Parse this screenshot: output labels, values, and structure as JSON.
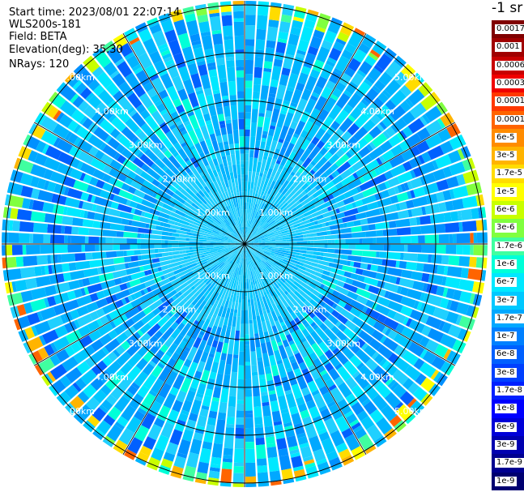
{
  "info": {
    "start_time": "Start time: 2023/08/01 22:07:14",
    "instrument": "WLS200s-181",
    "field": "Field: BETA",
    "elevation": "Elevation(deg): 35.30",
    "nrays": "NRays: 120"
  },
  "colorbar": {
    "title": "-1 sr",
    "labels": [
      "0.0017",
      "0.001",
      "0.0006",
      "0.0003",
      "0.00017",
      "0.0001",
      "6e-5",
      "3e-5",
      "1.7e-5",
      "1e-5",
      "6e-6",
      "3e-6",
      "1.7e-6",
      "1e-6",
      "6e-7",
      "3e-7",
      "1.7e-7",
      "1e-7",
      "6e-8",
      "3e-8",
      "1.7e-8",
      "1e-8",
      "6e-9",
      "3e-9",
      "1.7e-9",
      "1e-9"
    ],
    "colors": [
      "#800000",
      "#a00000",
      "#c80000",
      "#f00000",
      "#ff3800",
      "#ff6400",
      "#ff8c00",
      "#ffb400",
      "#ffdc00",
      "#ffff00",
      "#c8ff00",
      "#80ff40",
      "#40ffa0",
      "#00ffd8",
      "#00e8ff",
      "#00c8ff",
      "#00a8ff",
      "#0080ff",
      "#0060ff",
      "#0040ff",
      "#0020ff",
      "#0000ff",
      "#0000d8",
      "#0000b0",
      "#000090",
      "#000070"
    ]
  },
  "chart_data": {
    "type": "polar_ppi",
    "field": "BETA",
    "units": "sr-1",
    "rays": 120,
    "range_rings_km": [
      1,
      2,
      3,
      4,
      5
    ],
    "ring_labels": [
      "1.00km",
      "2.00km",
      "3.00km",
      "4.00km",
      "5.00km"
    ],
    "spoke_step_deg": 30,
    "approx_value_by_range_km": [
      [
        0.5,
        "6e-7"
      ],
      [
        1.5,
        "1.7e-7"
      ],
      [
        2.5,
        "1e-7"
      ],
      [
        3.5,
        "1e-7"
      ],
      [
        4.5,
        "1e-7"
      ],
      [
        5.3,
        "1e-5"
      ]
    ],
    "color_scale": "log"
  }
}
